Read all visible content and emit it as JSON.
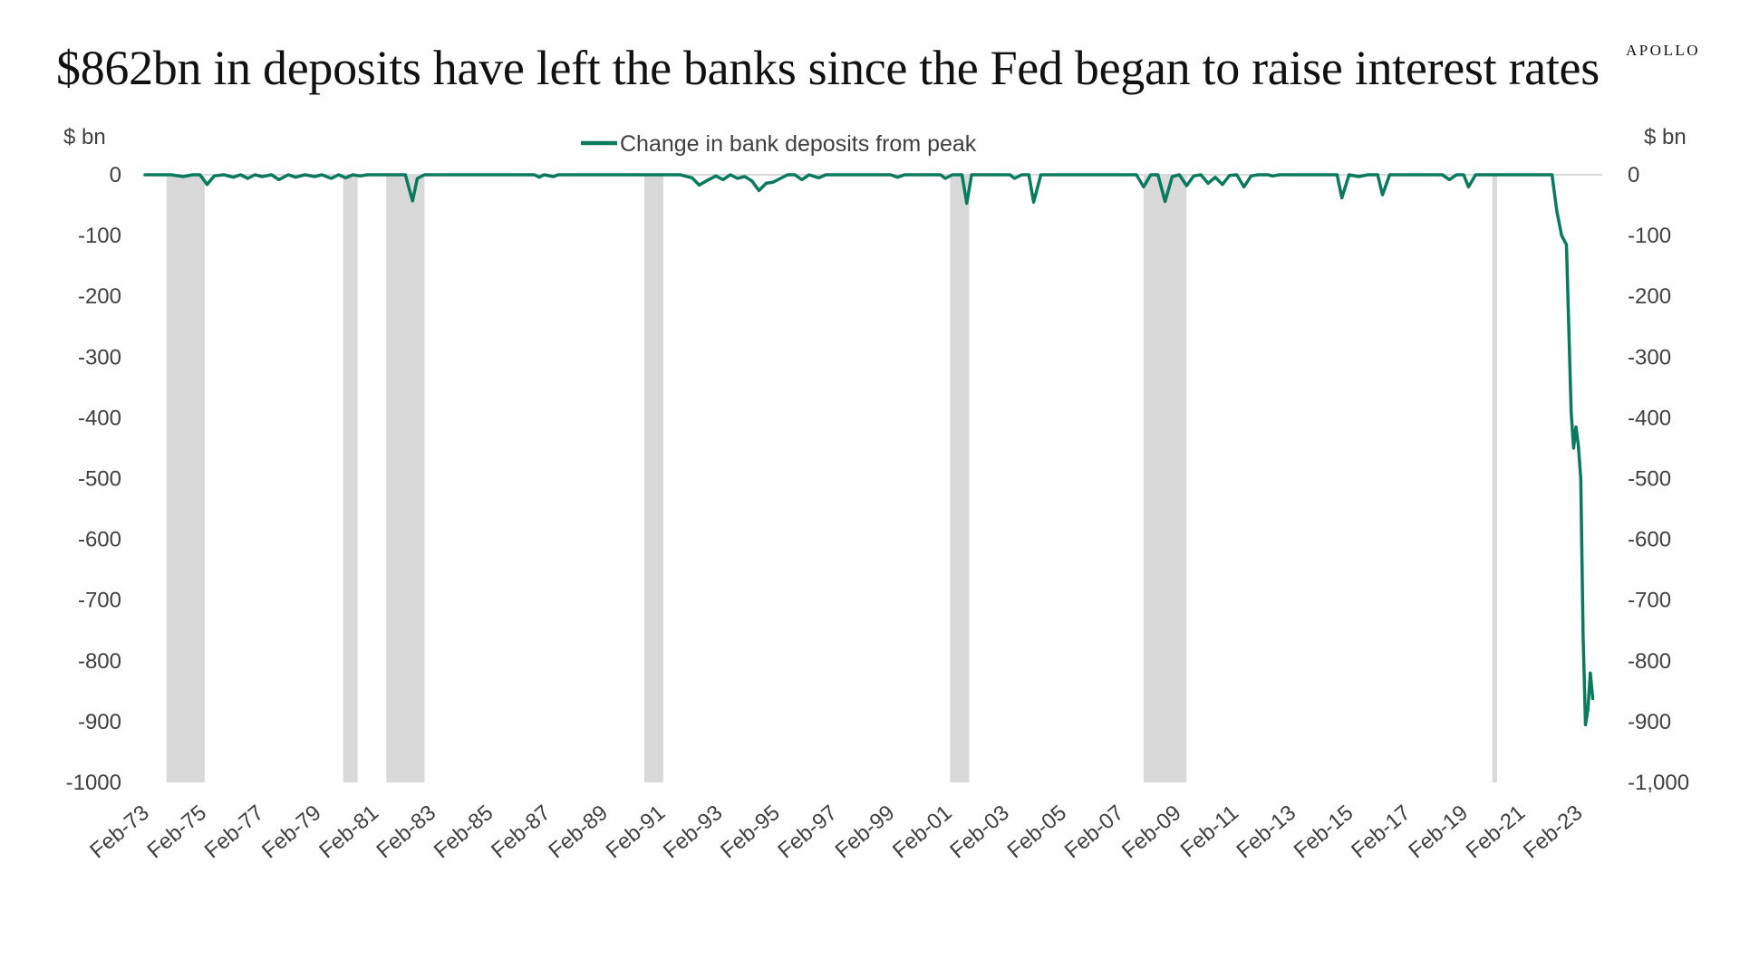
{
  "page": {
    "title": "$862bn in deposits have left the banks since the Fed began to raise interest rates",
    "brand": "APOLLO"
  },
  "chart_data": {
    "type": "line",
    "title": "$862bn in deposits have left the banks since the Fed began to raise interest rates",
    "left_axis_unit": "$ bn",
    "right_axis_unit": "$ bn",
    "ylim": [
      -1000,
      0
    ],
    "y_ticks": [
      0,
      -100,
      -200,
      -300,
      -400,
      -500,
      -600,
      -700,
      -800,
      -900,
      -1000
    ],
    "y_tick_labels_left": [
      "0",
      "-100",
      "-200",
      "-300",
      "-400",
      "-500",
      "-600",
      "-700",
      "-800",
      "-900",
      "-1000"
    ],
    "y_tick_labels_right": [
      "0",
      "-100",
      "-200",
      "-300",
      "-400",
      "-500",
      "-600",
      "-700",
      "-800",
      "-900",
      "-1,000"
    ],
    "xlim": [
      "1973-02",
      "2023-12"
    ],
    "x_tick_labels": [
      "Feb-73",
      "Feb-75",
      "Feb-77",
      "Feb-79",
      "Feb-81",
      "Feb-83",
      "Feb-85",
      "Feb-87",
      "Feb-89",
      "Feb-91",
      "Feb-93",
      "Feb-95",
      "Feb-97",
      "Feb-99",
      "Feb-01",
      "Feb-03",
      "Feb-05",
      "Feb-07",
      "Feb-09",
      "Feb-11",
      "Feb-13",
      "Feb-15",
      "Feb-17",
      "Feb-19",
      "Feb-21",
      "Feb-23"
    ],
    "x_tick_dates": [
      "1973-02",
      "1975-02",
      "1977-02",
      "1979-02",
      "1981-02",
      "1983-02",
      "1985-02",
      "1987-02",
      "1989-02",
      "1991-02",
      "1993-02",
      "1995-02",
      "1997-02",
      "1999-02",
      "2001-02",
      "2003-02",
      "2005-02",
      "2007-02",
      "2009-02",
      "2011-02",
      "2013-02",
      "2015-02",
      "2017-02",
      "2019-02",
      "2021-02",
      "2023-02"
    ],
    "legend": {
      "placement": "top-center"
    },
    "colors": {
      "series": "#0a7a5e",
      "recession": "#d9d9d9",
      "gridline": "#d9d9d9"
    },
    "recessions": [
      {
        "start": "1973-11",
        "end": "1975-03"
      },
      {
        "start": "1980-01",
        "end": "1980-07"
      },
      {
        "start": "1981-07",
        "end": "1982-11"
      },
      {
        "start": "1990-07",
        "end": "1991-03"
      },
      {
        "start": "2001-03",
        "end": "2001-11"
      },
      {
        "start": "2007-12",
        "end": "2009-06"
      },
      {
        "start": "2020-02",
        "end": "2020-04"
      }
    ],
    "series": [
      {
        "name": "Change in bank deposits from peak",
        "points": [
          [
            "1973-02",
            0
          ],
          [
            "1974-01",
            0
          ],
          [
            "1974-06",
            -3
          ],
          [
            "1974-10",
            0
          ],
          [
            "1975-01",
            0
          ],
          [
            "1975-04",
            -16
          ],
          [
            "1975-07",
            -2
          ],
          [
            "1975-11",
            0
          ],
          [
            "1976-03",
            -4
          ],
          [
            "1976-06",
            0
          ],
          [
            "1976-09",
            -6
          ],
          [
            "1976-12",
            0
          ],
          [
            "1977-03",
            -3
          ],
          [
            "1977-07",
            0
          ],
          [
            "1977-10",
            -8
          ],
          [
            "1978-02",
            0
          ],
          [
            "1978-05",
            -4
          ],
          [
            "1978-09",
            0
          ],
          [
            "1979-01",
            -3
          ],
          [
            "1979-04",
            0
          ],
          [
            "1979-08",
            -6
          ],
          [
            "1979-11",
            0
          ],
          [
            "1980-02",
            -5
          ],
          [
            "1980-05",
            0
          ],
          [
            "1980-08",
            -2
          ],
          [
            "1980-11",
            0
          ],
          [
            "1982-03",
            0
          ],
          [
            "1982-06",
            -43
          ],
          [
            "1982-08",
            -6
          ],
          [
            "1982-11",
            0
          ],
          [
            "1986-09",
            0
          ],
          [
            "1986-11",
            -4
          ],
          [
            "1987-01",
            0
          ],
          [
            "1987-05",
            -3
          ],
          [
            "1987-07",
            0
          ],
          [
            "1991-10",
            0
          ],
          [
            "1992-03",
            -5
          ],
          [
            "1992-06",
            -17
          ],
          [
            "1992-09",
            -10
          ],
          [
            "1993-01",
            -2
          ],
          [
            "1993-04",
            -8
          ],
          [
            "1993-07",
            0
          ],
          [
            "1993-10",
            -6
          ],
          [
            "1994-01",
            -3
          ],
          [
            "1994-04",
            -10
          ],
          [
            "1994-07",
            -26
          ],
          [
            "1994-10",
            -14
          ],
          [
            "1995-01",
            -12
          ],
          [
            "1995-04",
            -6
          ],
          [
            "1995-07",
            0
          ],
          [
            "1995-10",
            0
          ],
          [
            "1996-01",
            -8
          ],
          [
            "1996-04",
            0
          ],
          [
            "1996-08",
            -5
          ],
          [
            "1996-11",
            0
          ],
          [
            "1999-02",
            0
          ],
          [
            "1999-05",
            -4
          ],
          [
            "1999-08",
            0
          ],
          [
            "2000-11",
            0
          ],
          [
            "2001-01",
            -6
          ],
          [
            "2001-04",
            0
          ],
          [
            "2001-08",
            0
          ],
          [
            "2001-10",
            -47
          ],
          [
            "2001-12",
            0
          ],
          [
            "2003-04",
            0
          ],
          [
            "2003-06",
            -6
          ],
          [
            "2003-09",
            0
          ],
          [
            "2003-12",
            0
          ],
          [
            "2004-02",
            -45
          ],
          [
            "2004-05",
            0
          ],
          [
            "2007-09",
            0
          ],
          [
            "2007-12",
            -20
          ],
          [
            "2008-03",
            0
          ],
          [
            "2008-06",
            0
          ],
          [
            "2008-09",
            -44
          ],
          [
            "2008-12",
            -3
          ],
          [
            "2009-03",
            0
          ],
          [
            "2009-06",
            -18
          ],
          [
            "2009-09",
            -2
          ],
          [
            "2009-12",
            0
          ],
          [
            "2010-03",
            -14
          ],
          [
            "2010-06",
            -4
          ],
          [
            "2010-09",
            -16
          ],
          [
            "2010-12",
            -1
          ],
          [
            "2011-03",
            0
          ],
          [
            "2011-06",
            -20
          ],
          [
            "2011-09",
            -2
          ],
          [
            "2011-12",
            0
          ],
          [
            "2012-04",
            0
          ],
          [
            "2012-06",
            -2
          ],
          [
            "2012-09",
            0
          ],
          [
            "2014-09",
            0
          ],
          [
            "2014-11",
            -38
          ],
          [
            "2015-02",
            0
          ],
          [
            "2015-06",
            -3
          ],
          [
            "2015-10",
            0
          ],
          [
            "2016-02",
            0
          ],
          [
            "2016-04",
            -33
          ],
          [
            "2016-07",
            0
          ],
          [
            "2018-05",
            0
          ],
          [
            "2018-08",
            -8
          ],
          [
            "2018-11",
            0
          ],
          [
            "2019-02",
            0
          ],
          [
            "2019-04",
            -20
          ],
          [
            "2019-07",
            0
          ],
          [
            "2022-03",
            0
          ],
          [
            "2022-05",
            -60
          ],
          [
            "2022-07",
            -100
          ],
          [
            "2022-09",
            -115
          ],
          [
            "2022-11",
            -390
          ],
          [
            "2022-12",
            -450
          ],
          [
            "2023-01",
            -415
          ],
          [
            "2023-02",
            -445
          ],
          [
            "2023-03",
            -500
          ],
          [
            "2023-04",
            -760
          ],
          [
            "2023-05",
            -905
          ],
          [
            "2023-06",
            -880
          ],
          [
            "2023-07",
            -820
          ],
          [
            "2023-08",
            -862
          ]
        ]
      }
    ]
  }
}
